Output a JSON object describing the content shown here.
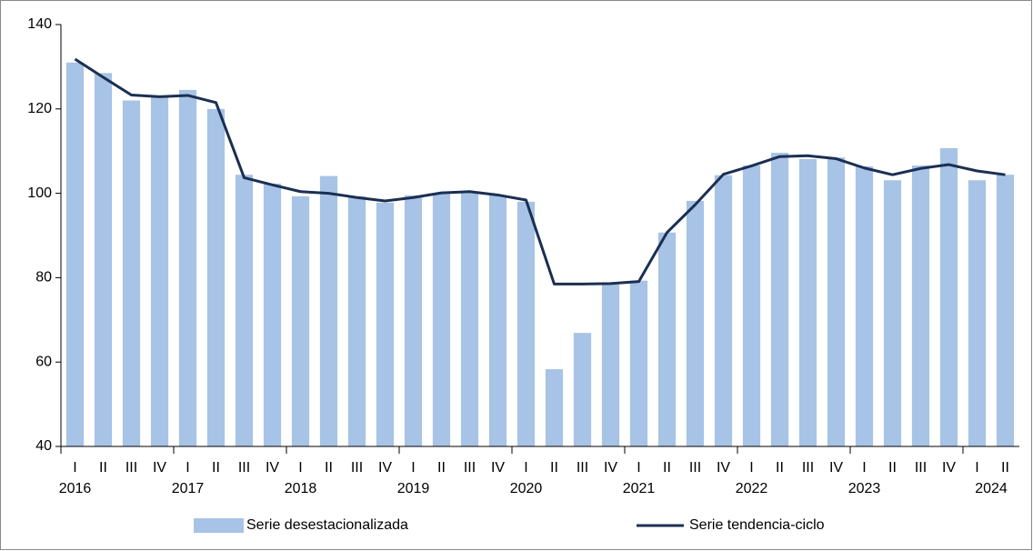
{
  "chart_data": {
    "type": "bar-line",
    "categories": [
      "I",
      "II",
      "III",
      "IV",
      "I",
      "II",
      "III",
      "IV",
      "I",
      "II",
      "III",
      "IV",
      "I",
      "II",
      "III",
      "IV",
      "I",
      "II",
      "III",
      "IV",
      "I",
      "II",
      "III",
      "IV",
      "I",
      "II",
      "III",
      "IV",
      "I",
      "II",
      "III",
      "IV",
      "I",
      "II"
    ],
    "years": [
      "2016",
      "2017",
      "2018",
      "2019",
      "2020",
      "2021",
      "2022",
      "2023",
      "2024"
    ],
    "series": [
      {
        "name": "Serie desestacionalizada",
        "type": "bar",
        "color": "#a7c3e6",
        "values": [
          131,
          128.5,
          122,
          123,
          124.5,
          120,
          104.4,
          102.3,
          99.3,
          104.1,
          99.3,
          97.8,
          99.5,
          100,
          100.2,
          99.5,
          98,
          58.3,
          66.9,
          78.4,
          79.3,
          90.7,
          98.2,
          104.3,
          106.6,
          109.6,
          108.1,
          108.5,
          106.4,
          103.1,
          106.6,
          110.7,
          103.1,
          104.4
        ]
      },
      {
        "name": "Serie tendencia-ciclo",
        "type": "line",
        "color": "#1b2f52",
        "values": [
          131.8,
          127.5,
          123.3,
          122.9,
          123.2,
          121.5,
          103.7,
          102,
          100.4,
          100,
          99,
          98.2,
          99,
          100.1,
          100.4,
          99.6,
          98.4,
          78.5,
          78.5,
          78.6,
          79.1,
          90.7,
          97.3,
          104.5,
          106.5,
          108.7,
          108.9,
          108.2,
          106,
          104.4,
          105.9,
          106.8,
          105.3,
          104.4
        ]
      }
    ],
    "ylim": [
      40,
      140
    ],
    "yticks": [
      40,
      60,
      80,
      100,
      120,
      140
    ],
    "grid": false,
    "legend": "bottom"
  }
}
